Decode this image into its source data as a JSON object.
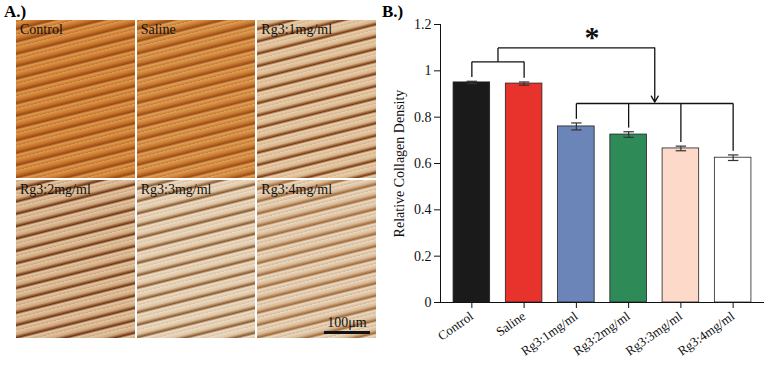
{
  "figure": {
    "panel_labels": [
      "A.)",
      "B.)"
    ],
    "micrographs": [
      "Control",
      "Saline",
      "Rg3:1mg/ml",
      "Rg3:2mg/ml",
      "Rg3:3mg/ml",
      "Rg3:4mg/ml"
    ],
    "scale_bar": "100μm"
  },
  "chart_data": {
    "type": "bar",
    "categories": [
      "Control",
      "Saline",
      "Rg3:1mg/ml",
      "Rg3:2mg/ml",
      "Rg3:3mg/ml",
      "Rg3:4mg/ml"
    ],
    "values": [
      0.95,
      0.945,
      0.76,
      0.725,
      0.665,
      0.625
    ],
    "errors": [
      0.005,
      0.007,
      0.015,
      0.012,
      0.01,
      0.012
    ],
    "colors": [
      "#1a1a1a",
      "#e8322c",
      "#6b85b8",
      "#2e8b57",
      "#fcd9c8",
      "#ffffff"
    ],
    "ylabel": "Relative Collagen Density",
    "ylim": [
      0,
      1.2
    ],
    "yticks": [
      0,
      0.2,
      0.4,
      0.6,
      0.8,
      1,
      1.2
    ],
    "annotations": [
      {
        "text": "*"
      }
    ],
    "grid": false
  }
}
